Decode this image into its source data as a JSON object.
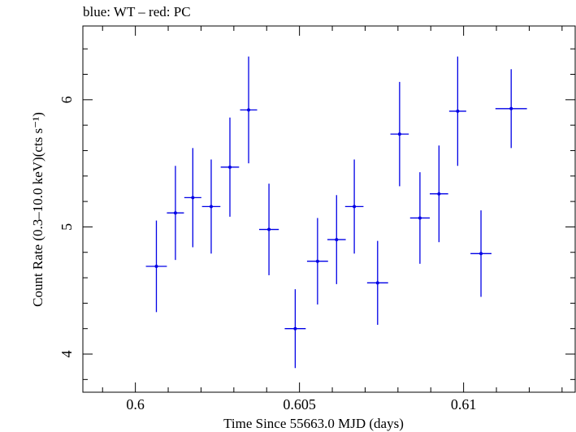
{
  "chart_data": {
    "type": "scatter",
    "title": "blue: WT – red: PC",
    "xlabel": "Time Since 55663.0 MJD (days)",
    "ylabel": "Count Rate (0.3–10.0 keV)(cts s⁻¹)",
    "xlim": [
      0.5984,
      0.6134
    ],
    "ylim": [
      3.7,
      6.58
    ],
    "x_ticks": [
      0.6,
      0.605,
      0.61
    ],
    "x_tick_labels": [
      "0.6",
      "0.605",
      "0.61"
    ],
    "y_ticks": [
      4,
      5,
      6
    ],
    "y_tick_labels": [
      "4",
      "5",
      "6"
    ],
    "grid": false,
    "series": [
      {
        "color": "#0000e6",
        "points": [
          {
            "x": 0.60064,
            "y": 4.69,
            "xerr": 0.00032,
            "yerr": 0.36
          },
          {
            "x": 0.60122,
            "y": 5.11,
            "xerr": 0.00026,
            "yerr": 0.37
          },
          {
            "x": 0.60175,
            "y": 5.23,
            "xerr": 0.00026,
            "yerr": 0.39
          },
          {
            "x": 0.60231,
            "y": 5.16,
            "xerr": 0.00028,
            "yerr": 0.37
          },
          {
            "x": 0.60288,
            "y": 5.47,
            "xerr": 0.00028,
            "yerr": 0.39
          },
          {
            "x": 0.60345,
            "y": 5.92,
            "xerr": 0.00026,
            "yerr": 0.42
          },
          {
            "x": 0.60407,
            "y": 4.98,
            "xerr": 0.0003,
            "yerr": 0.36
          },
          {
            "x": 0.60487,
            "y": 4.2,
            "xerr": 0.00032,
            "yerr": 0.31
          },
          {
            "x": 0.60555,
            "y": 4.73,
            "xerr": 0.00032,
            "yerr": 0.34
          },
          {
            "x": 0.60613,
            "y": 4.9,
            "xerr": 0.00028,
            "yerr": 0.35
          },
          {
            "x": 0.60667,
            "y": 5.16,
            "xerr": 0.00028,
            "yerr": 0.37
          },
          {
            "x": 0.60738,
            "y": 4.56,
            "xerr": 0.00032,
            "yerr": 0.33
          },
          {
            "x": 0.60805,
            "y": 5.73,
            "xerr": 0.00028,
            "yerr": 0.41
          },
          {
            "x": 0.60867,
            "y": 5.07,
            "xerr": 0.0003,
            "yerr": 0.36
          },
          {
            "x": 0.60925,
            "y": 5.26,
            "xerr": 0.00028,
            "yerr": 0.38
          },
          {
            "x": 0.60982,
            "y": 5.91,
            "xerr": 0.00026,
            "yerr": 0.43
          },
          {
            "x": 0.61053,
            "y": 4.79,
            "xerr": 0.00032,
            "yerr": 0.34
          },
          {
            "x": 0.61145,
            "y": 5.93,
            "xerr": 0.00048,
            "yerr": 0.31
          }
        ]
      }
    ]
  }
}
